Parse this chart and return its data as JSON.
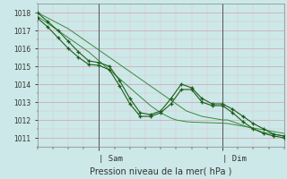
{
  "title": "",
  "xlabel": "Pression niveau de la mer( hPa )",
  "ylim": [
    1010.5,
    1018.5
  ],
  "xlim": [
    0,
    48
  ],
  "yticks": [
    1011,
    1012,
    1013,
    1014,
    1015,
    1016,
    1017,
    1018
  ],
  "xtick_positions": [
    12,
    36
  ],
  "xtick_labels": [
    "| Sam",
    "| Dim"
  ],
  "vline_positions": [
    12,
    36
  ],
  "background_color": "#cce8e8",
  "grid_color_major": "#d4a0b0",
  "grid_color_minor": "#e0c0c8",
  "line_color": "#1a5c1a",
  "line_color_light": "#3a8a3a",
  "hours": [
    0,
    1,
    2,
    3,
    4,
    5,
    6,
    7,
    8,
    9,
    10,
    11,
    12,
    13,
    14,
    15,
    16,
    17,
    18,
    19,
    20,
    21,
    22,
    23,
    24,
    25,
    26,
    27,
    28,
    29,
    30,
    31,
    32,
    33,
    34,
    35,
    36,
    37,
    38,
    39,
    40,
    41,
    42,
    43,
    44,
    45,
    46,
    47,
    48
  ],
  "smooth_top": [
    1018.0,
    1017.85,
    1017.7,
    1017.55,
    1017.4,
    1017.25,
    1017.1,
    1016.9,
    1016.7,
    1016.5,
    1016.3,
    1016.1,
    1015.9,
    1015.7,
    1015.5,
    1015.3,
    1015.1,
    1014.9,
    1014.7,
    1014.5,
    1014.3,
    1014.1,
    1013.9,
    1013.7,
    1013.5,
    1013.3,
    1013.1,
    1012.9,
    1012.7,
    1012.5,
    1012.4,
    1012.3,
    1012.2,
    1012.15,
    1012.1,
    1012.05,
    1012.0,
    1012.0,
    1011.9,
    1011.8,
    1011.7,
    1011.6,
    1011.5,
    1011.4,
    1011.3,
    1011.25,
    1011.2,
    1011.15,
    1011.1
  ],
  "smooth_bottom": [
    1017.8,
    1017.6,
    1017.4,
    1017.2,
    1017.0,
    1016.8,
    1016.6,
    1016.4,
    1016.2,
    1016.0,
    1015.8,
    1015.55,
    1015.3,
    1015.05,
    1014.8,
    1014.55,
    1014.3,
    1014.05,
    1013.8,
    1013.55,
    1013.3,
    1013.05,
    1012.8,
    1012.6,
    1012.4,
    1012.25,
    1012.1,
    1012.0,
    1011.95,
    1011.9,
    1011.88,
    1011.87,
    1011.86,
    1011.85,
    1011.84,
    1011.83,
    1011.82,
    1011.8,
    1011.75,
    1011.7,
    1011.65,
    1011.6,
    1011.55,
    1011.5,
    1011.45,
    1011.4,
    1011.35,
    1011.3,
    1011.25
  ],
  "dots1_x": [
    0,
    2,
    4,
    6,
    8,
    10,
    12,
    14,
    16,
    18,
    20,
    22,
    24,
    26,
    28,
    30,
    32,
    34,
    36,
    38,
    40,
    42,
    44,
    46,
    48
  ],
  "dots1_y": [
    1018.0,
    1017.5,
    1017.0,
    1016.4,
    1015.8,
    1015.3,
    1015.2,
    1015.0,
    1014.2,
    1013.2,
    1012.4,
    1012.3,
    1012.5,
    1013.2,
    1014.0,
    1013.8,
    1013.2,
    1012.9,
    1012.9,
    1012.6,
    1012.2,
    1011.8,
    1011.5,
    1011.2,
    1011.1
  ],
  "dots2_x": [
    0,
    2,
    4,
    6,
    8,
    10,
    12,
    14,
    16,
    18,
    20,
    22,
    24,
    26,
    28,
    30,
    32,
    34,
    36,
    38,
    40,
    42,
    44,
    46,
    48
  ],
  "dots2_y": [
    1017.7,
    1017.2,
    1016.6,
    1016.0,
    1015.5,
    1015.1,
    1015.05,
    1014.8,
    1013.9,
    1012.9,
    1012.2,
    1012.2,
    1012.4,
    1012.9,
    1013.7,
    1013.7,
    1013.0,
    1012.8,
    1012.8,
    1012.4,
    1011.9,
    1011.5,
    1011.25,
    1011.1,
    1011.0
  ]
}
